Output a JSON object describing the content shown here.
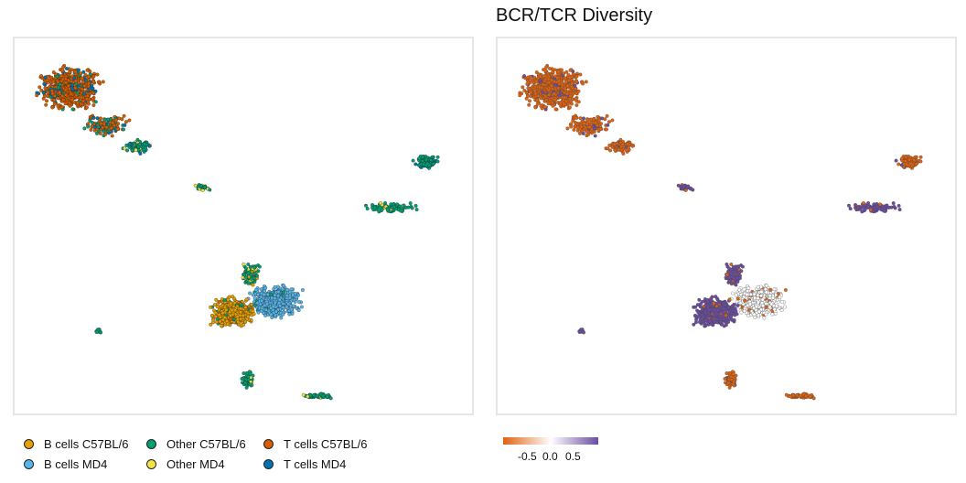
{
  "chart_data": [
    {
      "type": "scatter",
      "title": "",
      "xlabel": "",
      "ylabel": "",
      "grid": false,
      "legend_position": "bottom",
      "series": [
        {
          "name": "B cells C57BL/6",
          "color": "#E69F00"
        },
        {
          "name": "B cells MD4",
          "color": "#56B4E9"
        },
        {
          "name": "Other C57BL/6",
          "color": "#009E73"
        },
        {
          "name": "Other MD4",
          "color": "#F0E442"
        },
        {
          "name": "T cells C57BL/6",
          "color": "#D55E00"
        },
        {
          "name": "T cells MD4",
          "color": "#0072B2"
        }
      ]
    },
    {
      "type": "scatter",
      "title": "BCR/TCR Diversity",
      "xlabel": "",
      "ylabel": "",
      "grid": false,
      "color_scale": {
        "type": "diverging",
        "low_color": "#E0620F",
        "mid_color": "#ffffff",
        "high_color": "#6A4DA1",
        "range": [
          -0.7,
          0.7
        ],
        "ticks": [
          "-0.5",
          "0.0",
          "0.5"
        ]
      }
    }
  ],
  "legend": {
    "items": [
      {
        "label": "B cells C57BL/6",
        "color": "#E69F00"
      },
      {
        "label": "B cells MD4",
        "color": "#56B4E9"
      },
      {
        "label": "Other C57BL/6",
        "color": "#009E73"
      },
      {
        "label": "Other MD4",
        "color": "#F0E442"
      },
      {
        "label": "T cells C57BL/6",
        "color": "#D55E00"
      },
      {
        "label": "T cells MD4",
        "color": "#0072B2"
      }
    ]
  },
  "colorbar": {
    "tick_neg": "-0.5",
    "tick_zero": "0.0",
    "tick_pos": "0.5"
  }
}
